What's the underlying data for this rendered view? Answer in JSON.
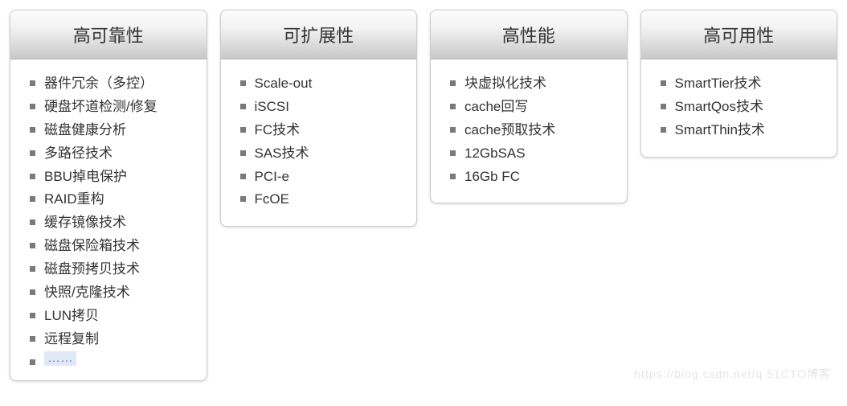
{
  "layout": {
    "background_color": "#ffffff",
    "card_border_color": "#cccccc",
    "card_border_radius": 8,
    "header_gradient": [
      "#fdfdfd",
      "#f3f3f3",
      "#dcdcdc",
      "#c8c8c8"
    ],
    "header_fontsize": 22,
    "header_color": "#333333",
    "item_fontsize": 17,
    "item_color": "#333333",
    "bullet_color": "#7a7a7a",
    "bullet_size": 7,
    "gap": 16
  },
  "cards": [
    {
      "title": "高可靠性",
      "items": [
        "器件冗余（多控）",
        "硬盘坏道检测/修复",
        "磁盘健康分析",
        "多路径技术",
        "BBU掉电保护",
        "RAID重构",
        "缓存镜像技术",
        "磁盘保险箱技术",
        "磁盘预拷贝技术",
        "快照/克隆技术",
        "LUN拷贝",
        "远程复制"
      ],
      "has_ellipsis": true,
      "ellipsis_text": "……"
    },
    {
      "title": "可扩展性",
      "items": [
        "Scale-out",
        "iSCSI",
        "FC技术",
        "SAS技术",
        "PCI-e",
        "FcOE"
      ],
      "has_ellipsis": false
    },
    {
      "title": "高性能",
      "items": [
        "块虚拟化技术",
        "cache回写",
        "cache预取技术",
        "12GbSAS",
        "16Gb FC"
      ],
      "has_ellipsis": false
    },
    {
      "title": "高可用性",
      "items": [
        "SmartTier技术",
        "SmartQos技术",
        "SmartThin技术"
      ],
      "has_ellipsis": false
    }
  ],
  "watermark": "https://blog.csdn.net/q    51CTO博客"
}
